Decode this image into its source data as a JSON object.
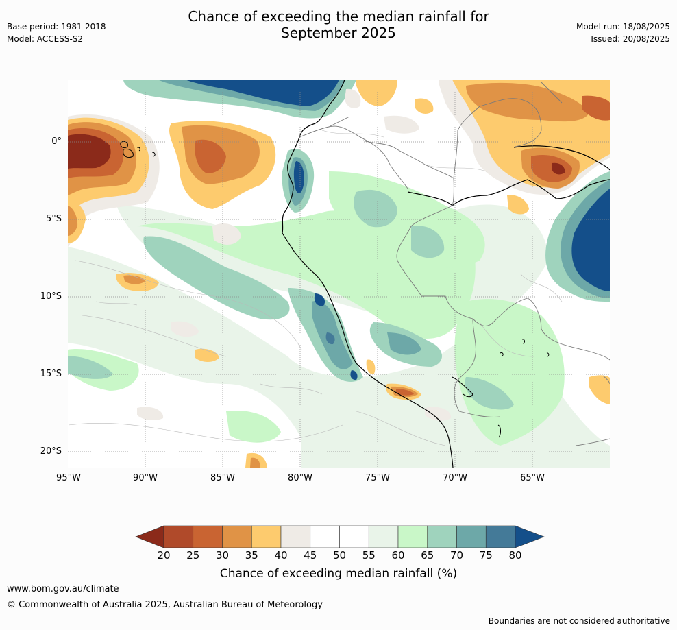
{
  "header": {
    "title_line1": "Chance of exceeding the median rainfall for",
    "title_line2": "September 2025",
    "base_period": "Base period: 1981-2018",
    "model": "Model: ACCESS-S2",
    "model_run": "Model run: 18/08/2025",
    "issued": "Issued: 20/08/2025"
  },
  "map": {
    "y_ticks": [
      "0°",
      "5°S",
      "10°S",
      "15°S",
      "20°S"
    ],
    "x_ticks": [
      "95°W",
      "90°W",
      "85°W",
      "80°W",
      "75°W",
      "70°W",
      "65°W"
    ]
  },
  "colorbar": {
    "ticks": [
      "20",
      "25",
      "30",
      "35",
      "40",
      "45",
      "50",
      "55",
      "60",
      "65",
      "70",
      "75",
      "80"
    ],
    "title": "Chance of exceeding median rainfall (%)",
    "colors": [
      "#8b2a1a",
      "#b04a2a",
      "#c96432",
      "#e09346",
      "#fdcb6e",
      "#efebe6",
      "#ffffff",
      "#ffffff",
      "#e9f4e9",
      "#c9f7c8",
      "#9fd3bd",
      "#6da8a8",
      "#447a98",
      "#144f8a"
    ]
  },
  "footer": {
    "url": "www.bom.gov.au/climate",
    "copyright": "© Commonwealth of Australia 2025, Australian Bureau of Meteorology",
    "disclaimer": "Boundaries are not considered authoritative"
  }
}
